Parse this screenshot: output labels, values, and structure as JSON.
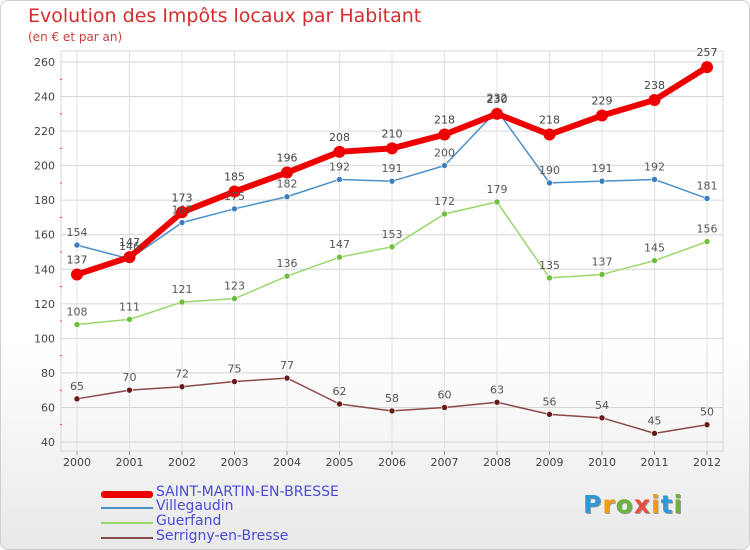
{
  "title": "Evolution des Impôts locaux par Habitant",
  "subtitle": "(en € et par an)",
  "logo": {
    "letters": [
      "P",
      "r",
      "o",
      "x",
      "i",
      "t",
      "i"
    ],
    "colors": [
      "#2b9ad6",
      "#f39c12",
      "#6bb33a",
      "#e74c3c",
      "#f39c12",
      "#2b9ad6",
      "#6bb33a"
    ]
  },
  "chart_data": {
    "type": "line",
    "title": "Evolution des Impôts locaux par Habitant",
    "ylabel": "(en € et par an)",
    "xlabel": "",
    "x": [
      "2000",
      "2001",
      "2002",
      "2003",
      "2004",
      "2005",
      "2006",
      "2007",
      "2008",
      "2009",
      "2010",
      "2011",
      "2012"
    ],
    "yticks": [
      40,
      60,
      80,
      100,
      120,
      140,
      160,
      180,
      200,
      220,
      240,
      260
    ],
    "ylim": [
      40,
      260
    ],
    "grid": true,
    "legend_position": "bottom-left",
    "series": [
      {
        "name": "Villegaudin",
        "color": "#4a90c8",
        "marker": "#3b7fc0",
        "width": 1.5,
        "dot": 3,
        "label_color": "#555555",
        "values": [
          154,
          146,
          167,
          175,
          182,
          192,
          191,
          200,
          232,
          190,
          191,
          192,
          181
        ],
        "labels": [
          "154",
          "146",
          "167",
          "175",
          "182",
          "192",
          "191",
          "200",
          "232",
          "190",
          "191",
          "192",
          "181"
        ]
      },
      {
        "name": "Guerfand",
        "color": "#9bd66a",
        "marker": "#6bbf3a",
        "width": 1.5,
        "dot": 3,
        "label_color": "#555555",
        "values": [
          108,
          111,
          121,
          123,
          136,
          147,
          153,
          172,
          179,
          135,
          137,
          145,
          156
        ],
        "labels": [
          "108",
          "111",
          "121",
          "123",
          "136",
          "147",
          "153",
          "172",
          "179",
          "135",
          "137",
          "145",
          "156"
        ]
      },
      {
        "name": "Serrigny-en-Bresse",
        "color": "#8a4a4a",
        "marker": "#6a1a1a",
        "width": 1.5,
        "dot": 3,
        "label_color": "#555555",
        "values": [
          65,
          70,
          72,
          75,
          77,
          62,
          58,
          60,
          63,
          56,
          54,
          45,
          50
        ],
        "labels": [
          "65",
          "70",
          "72",
          "75",
          "77",
          "62",
          "58",
          "60",
          "63",
          "56",
          "54",
          "45",
          "50"
        ]
      },
      {
        "name": "SAINT-MARTIN-EN-BRESSE",
        "color": "#ee0000",
        "marker": "#ee0000",
        "width": 6,
        "dot": 6,
        "label_color": "#444444",
        "values": [
          137,
          147,
          173,
          185,
          196,
          208,
          210,
          218,
          230,
          218,
          229,
          238,
          257
        ],
        "labels": [
          "137",
          "147",
          "173",
          "185",
          "196",
          "208",
          "210",
          "218",
          "230",
          "218",
          "229",
          "238",
          "257"
        ]
      }
    ]
  },
  "legend": [
    {
      "name": "SAINT-MARTIN-EN-BRESSE",
      "color": "#ee0000",
      "thickness": 7
    },
    {
      "name": "Villegaudin",
      "color": "#4a90c8",
      "thickness": 2
    },
    {
      "name": "Guerfand",
      "color": "#9bd66a",
      "thickness": 2
    },
    {
      "name": "Serrigny-en-Bresse",
      "color": "#8a4a4a",
      "thickness": 2
    }
  ],
  "legend_text_color": "#4b4bd6"
}
